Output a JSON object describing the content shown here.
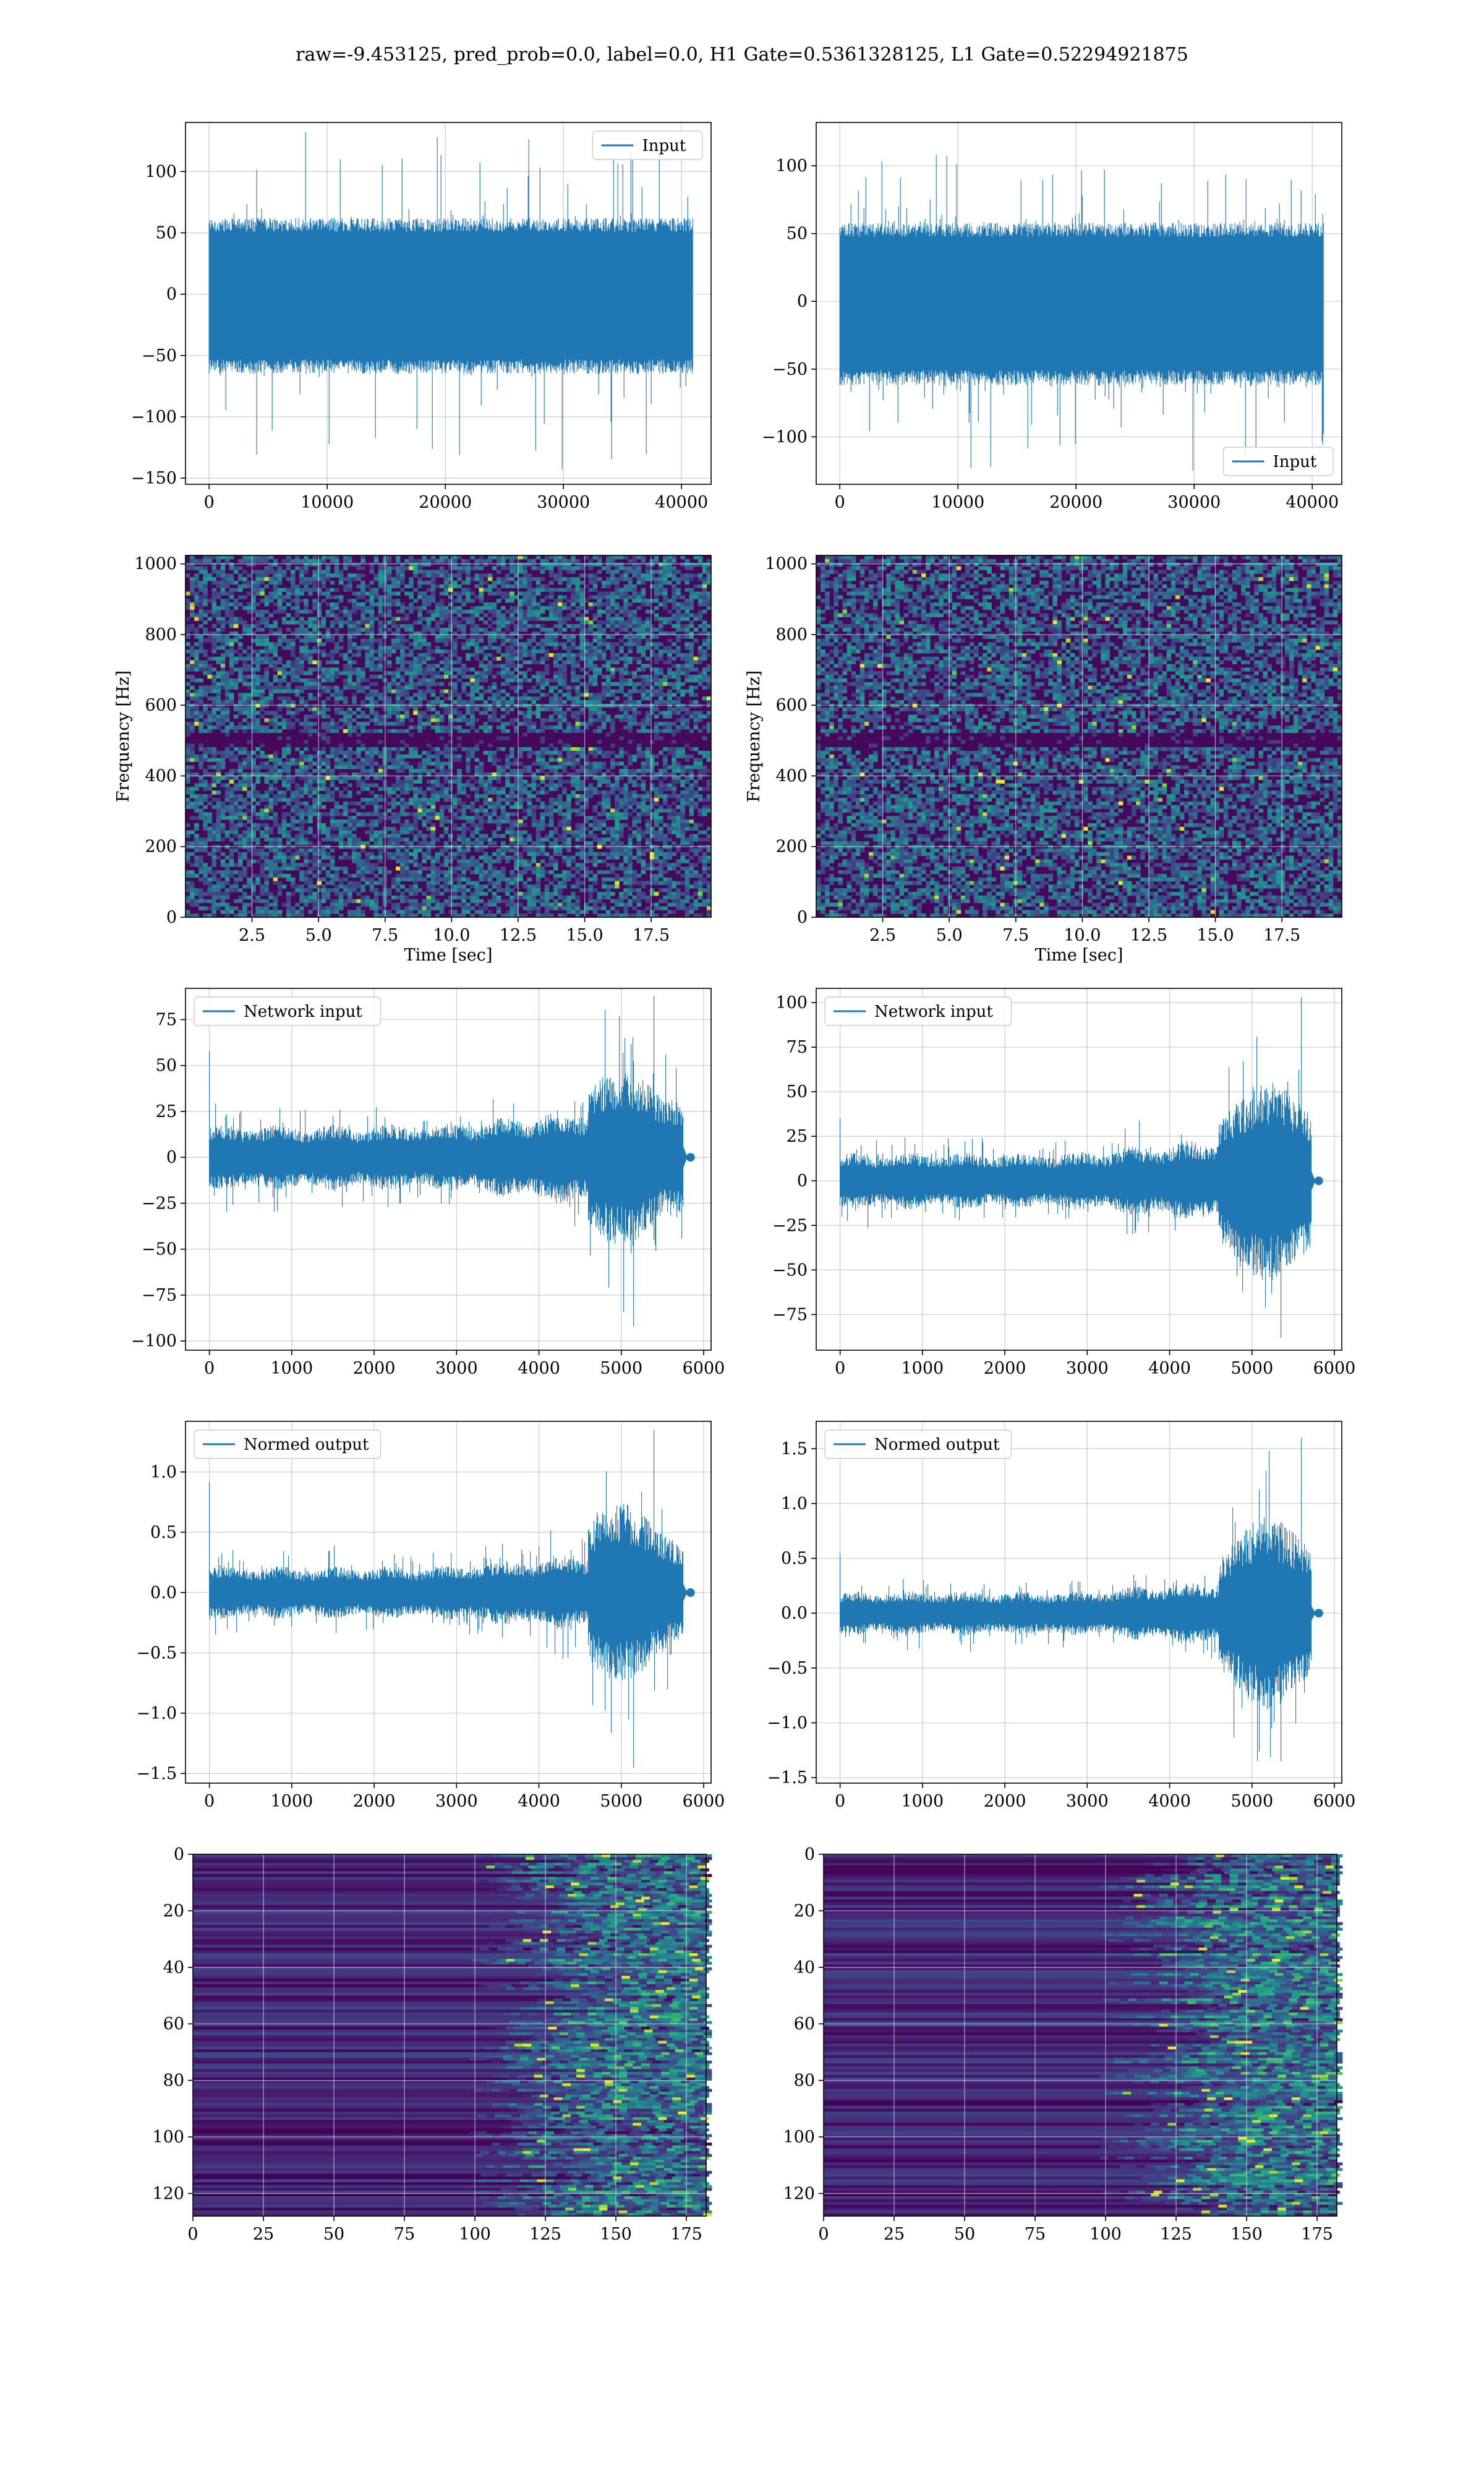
{
  "figure": {
    "title": "raw=-9.453125, pred_prob=0.0, label=0.0, H1 Gate=0.5361328125, L1 Gate=0.52294921875"
  },
  "colors": {
    "series": "#1f77b4",
    "grid": "#b0b0b0",
    "colormap": "viridis"
  },
  "chart_data": [
    {
      "type": "line",
      "legend": "Input",
      "legend_position": "top-right",
      "grid": true,
      "xlim": [
        -2000,
        42500
      ],
      "ylim": [
        -155,
        140
      ],
      "xticks": [
        0,
        10000,
        20000,
        30000,
        40000
      ],
      "yticks": [
        -150,
        -100,
        -50,
        0,
        50,
        100
      ],
      "x_range": [
        0,
        40960
      ],
      "band": [
        -65,
        62
      ],
      "peak_max": 132,
      "peak_min": -143,
      "samples": 40960
    },
    {
      "type": "line",
      "legend": "Input",
      "legend_position": "bottom-right",
      "grid": true,
      "xlim": [
        -2000,
        42500
      ],
      "ylim": [
        -135,
        132
      ],
      "xticks": [
        0,
        10000,
        20000,
        30000,
        40000
      ],
      "yticks": [
        -100,
        -50,
        0,
        50,
        100
      ],
      "x_range": [
        0,
        40960
      ],
      "band": [
        -62,
        58
      ],
      "peak_max": 108,
      "peak_min": -125,
      "samples": 40960
    },
    {
      "type": "heatmap",
      "subtype": "spectrogram",
      "grid": true,
      "colormap": "viridis",
      "xlabel": "Time [sec]",
      "ylabel": "Frequency [Hz]",
      "xlim": [
        0,
        19.75
      ],
      "ylim": [
        0,
        1024
      ],
      "xticks": [
        2.5,
        5.0,
        7.5,
        10.0,
        12.5,
        15.0,
        17.5
      ],
      "yticks": [
        0,
        200,
        400,
        600,
        800,
        1000
      ],
      "dark_band_hz": [
        480,
        520
      ]
    },
    {
      "type": "heatmap",
      "subtype": "spectrogram",
      "grid": true,
      "colormap": "viridis",
      "xlabel": "Time [sec]",
      "ylabel": "Frequency [Hz]",
      "xlim": [
        0,
        19.75
      ],
      "ylim": [
        0,
        1024
      ],
      "xticks": [
        2.5,
        5.0,
        7.5,
        10.0,
        12.5,
        15.0,
        17.5
      ],
      "yticks": [
        0,
        200,
        400,
        600,
        800,
        1000
      ],
      "dark_band_hz": [
        480,
        520
      ]
    },
    {
      "type": "line",
      "legend": "Network input",
      "legend_position": "top-left",
      "grid": true,
      "xlim": [
        -290,
        6090
      ],
      "ylim": [
        -105,
        92
      ],
      "xticks": [
        0,
        1000,
        2000,
        3000,
        4000,
        5000,
        6000
      ],
      "yticks": [
        -100,
        -75,
        -50,
        -25,
        0,
        25,
        50,
        75
      ],
      "x_range": [
        0,
        5800
      ],
      "signal_end": 5750,
      "base_band": 18,
      "burst_start": 4600,
      "burst_peak": 5000,
      "peak_max": 88,
      "peak_min": -92,
      "early_spike": 58
    },
    {
      "type": "line",
      "legend": "Network input",
      "legend_position": "top-left",
      "grid": true,
      "xlim": [
        -290,
        6090
      ],
      "ylim": [
        -95,
        108
      ],
      "xticks": [
        0,
        1000,
        2000,
        3000,
        4000,
        5000,
        6000
      ],
      "yticks": [
        -75,
        -50,
        -25,
        0,
        25,
        50,
        75,
        100
      ],
      "x_range": [
        0,
        5800
      ],
      "signal_end": 5720,
      "base_band": 16,
      "burst_start": 4600,
      "burst_peak": 5200,
      "peak_max": 103,
      "peak_min": -88,
      "early_spike": 35
    },
    {
      "type": "line",
      "legend": "Normed output",
      "legend_position": "top-left",
      "grid": true,
      "xlim": [
        -290,
        6090
      ],
      "ylim": [
        -1.58,
        1.42
      ],
      "xticks": [
        0,
        1000,
        2000,
        3000,
        4000,
        5000,
        6000
      ],
      "yticks": [
        -1.5,
        -1.0,
        -0.5,
        0.0,
        0.5,
        1.0
      ],
      "x_range": [
        0,
        5800
      ],
      "signal_end": 5750,
      "base_band": 0.22,
      "burst_start": 4600,
      "burst_peak": 5000,
      "peak_max": 1.35,
      "peak_min": -1.45,
      "early_spike": 0.92
    },
    {
      "type": "line",
      "legend": "Normed output",
      "legend_position": "top-left",
      "grid": true,
      "xlim": [
        -290,
        6090
      ],
      "ylim": [
        -1.55,
        1.75
      ],
      "xticks": [
        0,
        1000,
        2000,
        3000,
        4000,
        5000,
        6000
      ],
      "yticks": [
        -1.5,
        -1.0,
        -0.5,
        0.0,
        0.5,
        1.0,
        1.5
      ],
      "x_range": [
        0,
        5800
      ],
      "signal_end": 5720,
      "base_band": 0.2,
      "burst_start": 4600,
      "burst_peak": 5200,
      "peak_max": 1.6,
      "peak_min": -1.35,
      "early_spike": 0.55
    },
    {
      "type": "heatmap",
      "subtype": "feature-map",
      "grid": true,
      "colormap": "viridis",
      "xlim": [
        0,
        182
      ],
      "ylim": [
        128,
        0
      ],
      "xticks": [
        0,
        25,
        50,
        75,
        100,
        125,
        150,
        175
      ],
      "yticks": [
        0,
        20,
        40,
        60,
        80,
        100,
        120
      ],
      "rows": 128,
      "cols": 182,
      "activity_onset_col": 118
    },
    {
      "type": "heatmap",
      "subtype": "feature-map",
      "grid": true,
      "colormap": "viridis",
      "xlim": [
        0,
        182
      ],
      "ylim": [
        128,
        0
      ],
      "xticks": [
        0,
        25,
        50,
        75,
        100,
        125,
        150,
        175
      ],
      "yticks": [
        0,
        20,
        40,
        60,
        80,
        100,
        120
      ],
      "rows": 128,
      "cols": 182,
      "activity_onset_col": 118
    }
  ]
}
